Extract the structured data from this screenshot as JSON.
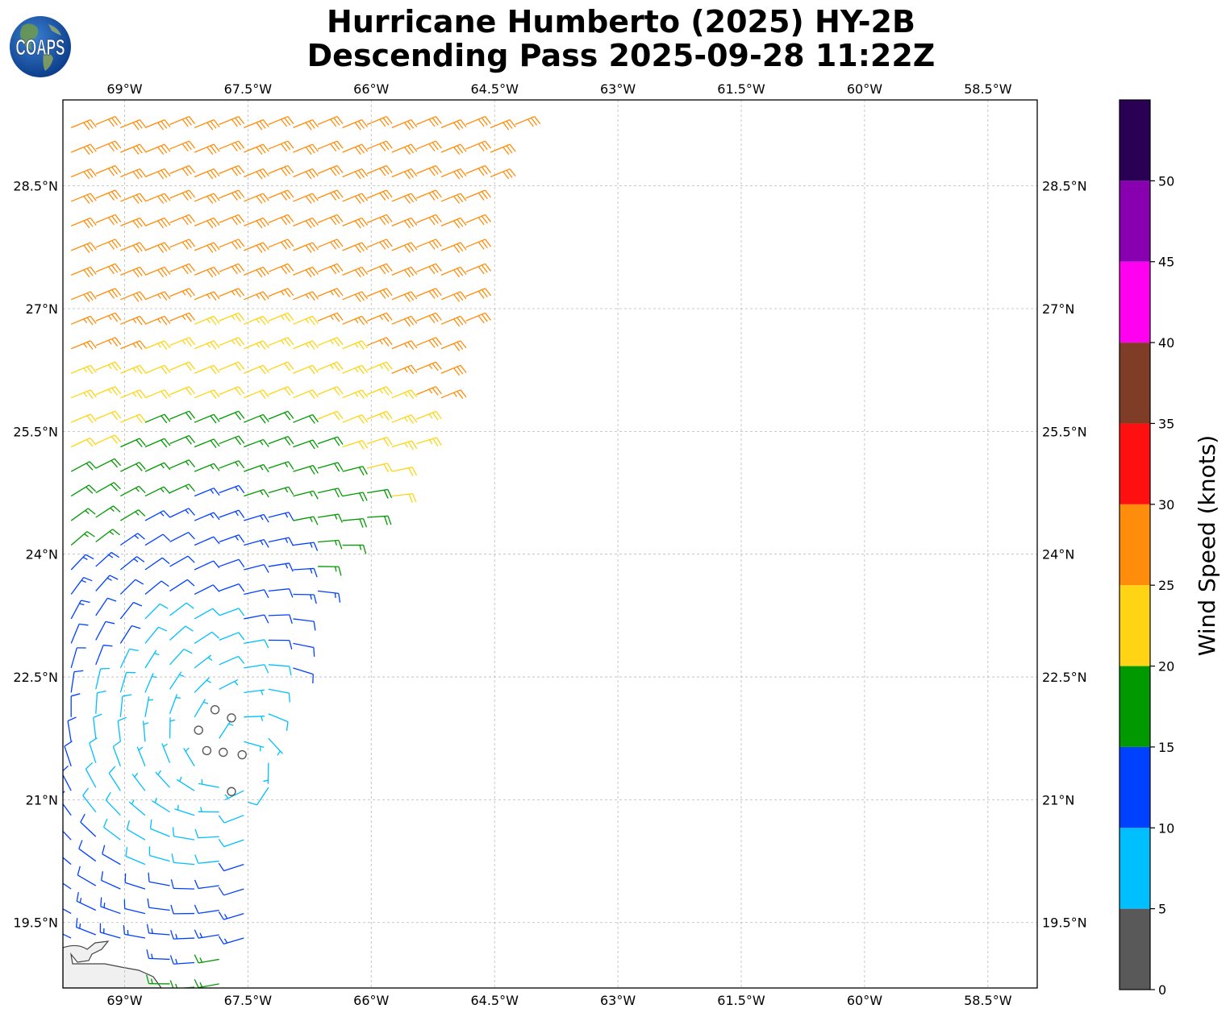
{
  "title": {
    "line1": "Hurricane Humberto (2025) HY-2B",
    "line2": "Descending Pass 2025-09-28 11:22Z"
  },
  "logo": {
    "text": "COAPS"
  },
  "map": {
    "lon_range": [
      -69.75,
      -57.9
    ],
    "lat_range": [
      18.7,
      29.55
    ],
    "lon_ticks": [
      -69,
      -67.5,
      -66,
      -64.5,
      -63,
      -61.5,
      -60,
      -58.5
    ],
    "lon_tick_labels": [
      "69°W",
      "67.5°W",
      "66°W",
      "64.5°W",
      "63°W",
      "61.5°W",
      "60°W",
      "58.5°W"
    ],
    "lat_ticks": [
      19.5,
      21,
      22.5,
      24,
      25.5,
      27,
      28.5
    ],
    "lat_tick_labels": [
      "19.5°N",
      "21°N",
      "22.5°N",
      "24°N",
      "25.5°N",
      "27°N",
      "28.5°N"
    ],
    "grid": true,
    "land_color": "#f0f0f0",
    "coast_color": "#444444"
  },
  "colorbar": {
    "label": "Wind Speed (knots)",
    "tick_labels": [
      "0",
      "5",
      "10",
      "15",
      "20",
      "25",
      "30",
      "35",
      "40",
      "45",
      "50"
    ],
    "bins": [
      {
        "min": 0,
        "max": 5,
        "color": "#595959"
      },
      {
        "min": 5,
        "max": 10,
        "color": "#00bfff"
      },
      {
        "min": 10,
        "max": 15,
        "color": "#0040ff"
      },
      {
        "min": 15,
        "max": 20,
        "color": "#009900"
      },
      {
        "min": 20,
        "max": 25,
        "color": "#ffd414"
      },
      {
        "min": 25,
        "max": 30,
        "color": "#ff8c0a"
      },
      {
        "min": 30,
        "max": 35,
        "color": "#ff1010"
      },
      {
        "min": 35,
        "max": 40,
        "color": "#7f3d28"
      },
      {
        "min": 40,
        "max": 45,
        "color": "#ff00f0"
      },
      {
        "min": 45,
        "max": 50,
        "color": "#8800b0"
      },
      {
        "min": 50,
        "max": 55,
        "color": "#2a0055"
      }
    ],
    "range": [
      0,
      55
    ]
  },
  "calm_circles": [
    {
      "lon": -67.9,
      "lat": 22.1
    },
    {
      "lon": -67.7,
      "lat": 22.0
    },
    {
      "lon": -68.1,
      "lat": 21.85
    },
    {
      "lon": -68.0,
      "lat": 21.6
    },
    {
      "lon": -67.8,
      "lat": 21.58
    },
    {
      "lon": -67.57,
      "lat": 21.55
    },
    {
      "lon": -67.7,
      "lat": 21.1
    }
  ]
}
